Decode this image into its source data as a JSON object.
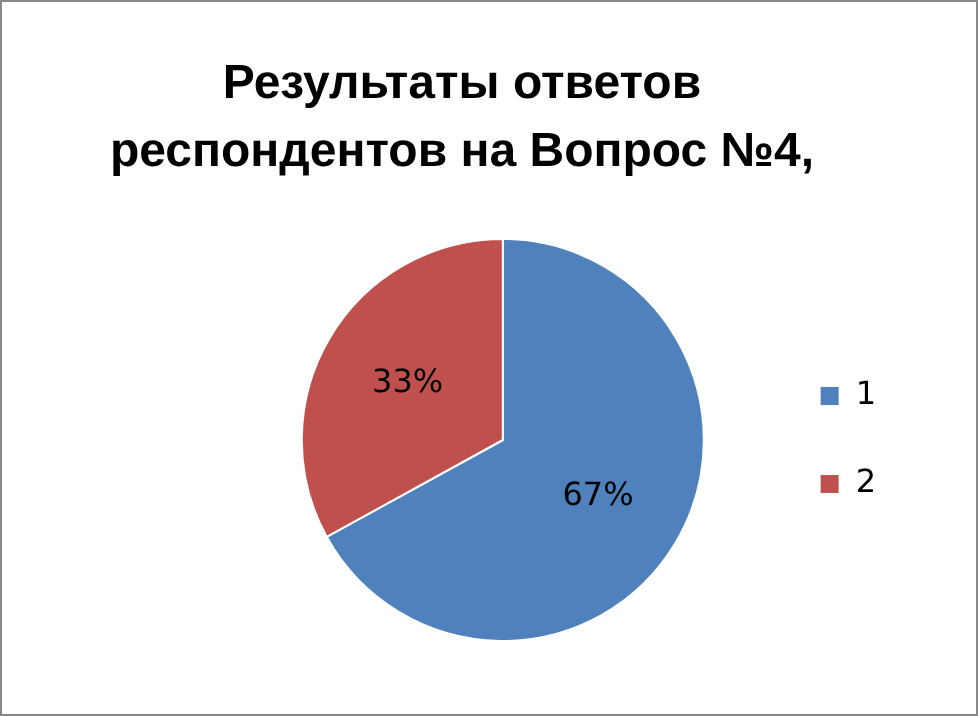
{
  "chart_data": {
    "type": "pie",
    "title": "Результаты ответов респондентов на Вопрос №4,",
    "categories": [
      "1",
      "2"
    ],
    "values": [
      67,
      33
    ],
    "colors": [
      "#4f81bd",
      "#c0504d"
    ],
    "value_labels": [
      "67%",
      "33%"
    ],
    "legend": "right"
  }
}
